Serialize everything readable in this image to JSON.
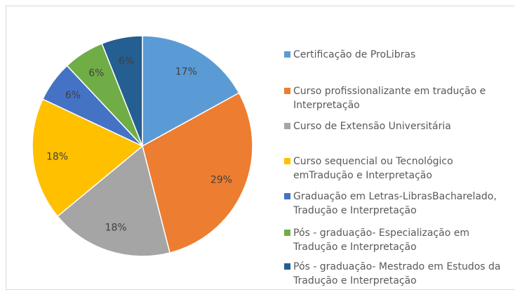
{
  "chart_data": {
    "type": "pie",
    "categories": [
      "Certificação de ProLibras",
      "Curso profissionalizante em tradução e Interpretação",
      "Curso de Extensão Universitária",
      "Curso sequencial ou Tecnológico emTradução e Interpretação",
      "Graduação em Letras-LibrasBacharelado, Tradução e Interpretação",
      "Pós - graduação- Especialização em Tradução e Interpretação",
      "Pós - graduação- Mestrado em Estudos da Tradução e Interpretação"
    ],
    "values": [
      17,
      29,
      18,
      18,
      6,
      6,
      6
    ],
    "value_labels": [
      "17%",
      "29%",
      "18%",
      "18%",
      "6%",
      "6%",
      "6%"
    ],
    "colors": [
      "#5B9BD5",
      "#ED7D31",
      "#A5A5A5",
      "#FFC000",
      "#4472C4",
      "#70AD47",
      "#255E91"
    ],
    "legend": "right"
  }
}
